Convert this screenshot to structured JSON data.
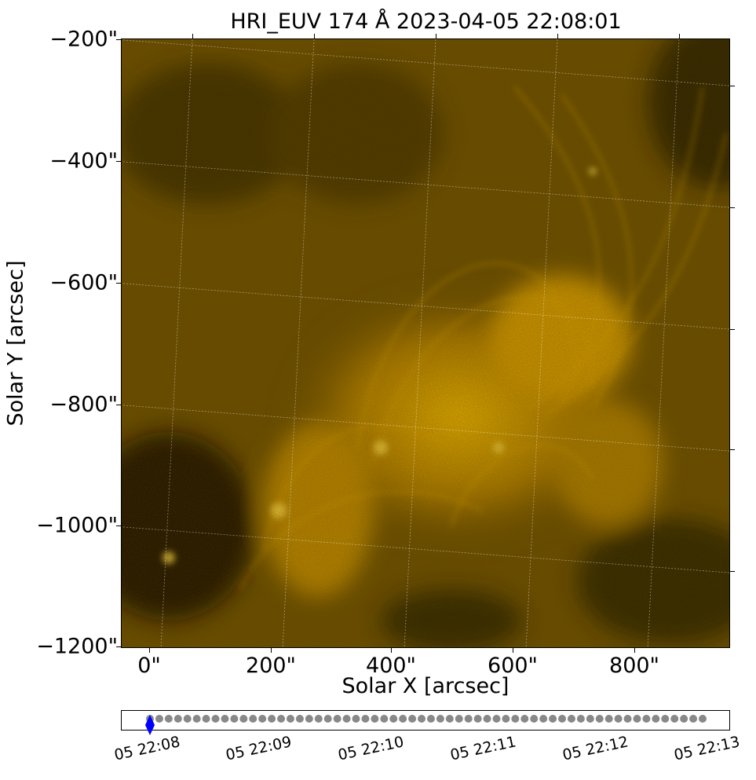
{
  "plot": {
    "title": "HRI_EUV 174 Å 2023-04-05 22:08:01",
    "xlabel": "Solar X [arcsec]",
    "ylabel": "Solar Y [arcsec]",
    "colormap": [
      "#000000",
      "#3a2700",
      "#7a5300",
      "#c98b00",
      "#ffcc33"
    ],
    "x_ticks": [
      "0\"",
      "200\"",
      "400\"",
      "600\"",
      "800\""
    ],
    "y_ticks": [
      "−200\"",
      "−400\"",
      "−600\"",
      "−800\"",
      "−1000\"",
      "−1200\""
    ]
  },
  "timeline": {
    "ticks": [
      "05 22:08",
      "05 22:09",
      "05 22:10",
      "05 22:11",
      "05 22:12",
      "05 22:13"
    ],
    "frame_color": "#888888",
    "current_color": "#0000ff",
    "frames": 60,
    "current_frame": 0
  }
}
